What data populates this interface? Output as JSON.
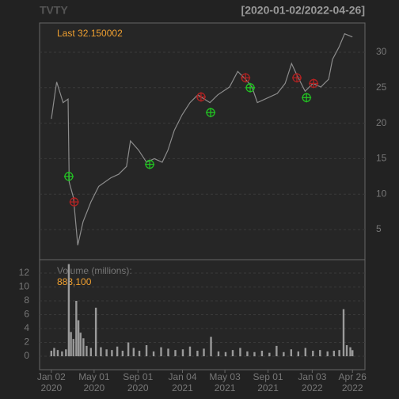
{
  "title": "TVTY",
  "date_range": "[2020-01-02/2022-04-26]",
  "chart_data": [
    {
      "type": "line",
      "annotation": "Last 32.150002",
      "color": "#8c8c8c",
      "x": [
        "2020-01-02",
        "2020-01-13",
        "2020-01-17",
        "2020-02-04",
        "2020-02-18",
        "2020-02-21",
        "2020-03-04",
        "2020-03-16",
        "2020-03-31",
        "2020-04-22",
        "2020-05-14",
        "2020-06-17",
        "2020-07-09",
        "2020-07-31",
        "2020-08-11",
        "2020-09-03",
        "2020-09-25",
        "2020-10-17",
        "2020-11-08",
        "2020-11-24",
        "2020-12-12",
        "2021-01-03",
        "2021-01-25",
        "2021-02-16",
        "2021-03-06",
        "2021-03-22",
        "2021-04-13",
        "2021-05-16",
        "2021-06-08",
        "2021-06-30",
        "2021-07-18",
        "2021-08-02",
        "2021-08-24",
        "2021-09-27",
        "2021-10-19",
        "2021-11-06",
        "2021-11-21",
        "2021-12-14",
        "2022-01-05",
        "2022-01-27",
        "2022-02-18",
        "2022-03-01",
        "2022-03-19",
        "2022-04-04",
        "2022-04-26"
      ],
      "values": [
        20.6,
        24.5,
        25.8,
        22.9,
        23.4,
        11.7,
        9.5,
        2.8,
        6.1,
        8.9,
        11.1,
        12.3,
        12.8,
        13.9,
        17.5,
        16.2,
        14.5,
        15,
        14.5,
        16.2,
        19,
        21.2,
        22.9,
        24,
        23.4,
        22.9,
        24,
        25.1,
        27.3,
        26.2,
        25.1,
        22.9,
        23.4,
        24.2,
        25.6,
        28.4,
        26.8,
        24.5,
        25.6,
        25.1,
        26.2,
        29,
        30.7,
        32.6,
        32.15
      ],
      "xlim": [
        "2019-11-30",
        "2022-05-31"
      ],
      "ylim": [
        0.76,
        34.13
      ],
      "yticks": [
        5,
        10,
        15,
        20,
        25,
        30
      ],
      "grid": true,
      "buy_signals": {
        "color": "#22c022",
        "x": [
          "2020-02-20",
          "2020-10-04",
          "2021-03-24",
          "2021-07-13",
          "2021-12-18"
        ],
        "values": [
          12.5,
          14.2,
          21.5,
          25,
          23.6
        ]
      },
      "sell_signals": {
        "color": "#b02222",
        "x": [
          "2020-03-06",
          "2021-02-25",
          "2021-06-30",
          "2021-11-21",
          "2022-01-07"
        ],
        "values": [
          8.9,
          23.7,
          26.4,
          26.4,
          25.6
        ]
      }
    },
    {
      "type": "bar",
      "label": "Volume (millions):",
      "annotation": "883,100",
      "color": "#9a9a9a",
      "x": [
        "2020-01-02",
        "2020-01-10",
        "2020-01-20",
        "2020-02-01",
        "2020-02-12",
        "2020-02-20",
        "2020-02-26",
        "2020-03-04",
        "2020-03-12",
        "2020-03-18",
        "2020-03-24",
        "2020-04-01",
        "2020-04-10",
        "2020-04-22",
        "2020-05-06",
        "2020-05-20",
        "2020-06-05",
        "2020-06-20",
        "2020-07-05",
        "2020-07-20",
        "2020-08-05",
        "2020-08-20",
        "2020-09-05",
        "2020-09-25",
        "2020-10-15",
        "2020-11-05",
        "2020-11-25",
        "2020-12-15",
        "2021-01-05",
        "2021-01-25",
        "2021-02-15",
        "2021-03-05",
        "2021-03-25",
        "2021-04-15",
        "2021-05-05",
        "2021-05-25",
        "2021-06-15",
        "2021-07-05",
        "2021-07-25",
        "2021-08-15",
        "2021-09-05",
        "2021-09-25",
        "2021-10-15",
        "2021-11-05",
        "2021-11-25",
        "2021-12-15",
        "2022-01-05",
        "2022-01-25",
        "2022-02-15",
        "2022-03-05",
        "2022-03-20",
        "2022-04-01",
        "2022-04-10",
        "2022-04-20",
        "2022-04-26"
      ],
      "values": [
        0.8,
        1.2,
        0.9,
        0.7,
        1.0,
        13.3,
        3.5,
        2.5,
        8.0,
        5.2,
        3.4,
        2.6,
        1.5,
        1.2,
        7.0,
        1.3,
        1.0,
        0.9,
        1.4,
        0.8,
        2.0,
        1.2,
        0.8,
        1.6,
        0.7,
        1.3,
        1.1,
        0.9,
        1.0,
        1.4,
        0.8,
        1.1,
        2.8,
        0.7,
        0.6,
        0.9,
        1.2,
        0.7,
        0.6,
        0.8,
        0.5,
        1.5,
        0.6,
        1.0,
        0.7,
        1.2,
        0.8,
        0.9,
        0.7,
        0.8,
        0.9,
        6.8,
        1.6,
        1.3,
        0.88
      ],
      "xlim": [
        "2019-11-30",
        "2022-05-31"
      ],
      "ylim": [
        -1.94,
        13.94
      ],
      "yticks": [
        0,
        2,
        4,
        6,
        8,
        10,
        12
      ],
      "grid": true,
      "xticks": [
        {
          "value": "2020-01-02",
          "label": "Jan 02\n2020"
        },
        {
          "value": "2020-05-01",
          "label": "May 01\n2020"
        },
        {
          "value": "2020-09-01",
          "label": "Sep 01\n2020"
        },
        {
          "value": "2021-01-04",
          "label": "Jan 04\n2021"
        },
        {
          "value": "2021-05-03",
          "label": "May 03\n2021"
        },
        {
          "value": "2021-09-01",
          "label": "Sep 01\n2021"
        },
        {
          "value": "2022-01-03",
          "label": "Jan 03\n2022"
        },
        {
          "value": "2022-04-26",
          "label": "Apr 26\n2022"
        }
      ]
    }
  ]
}
